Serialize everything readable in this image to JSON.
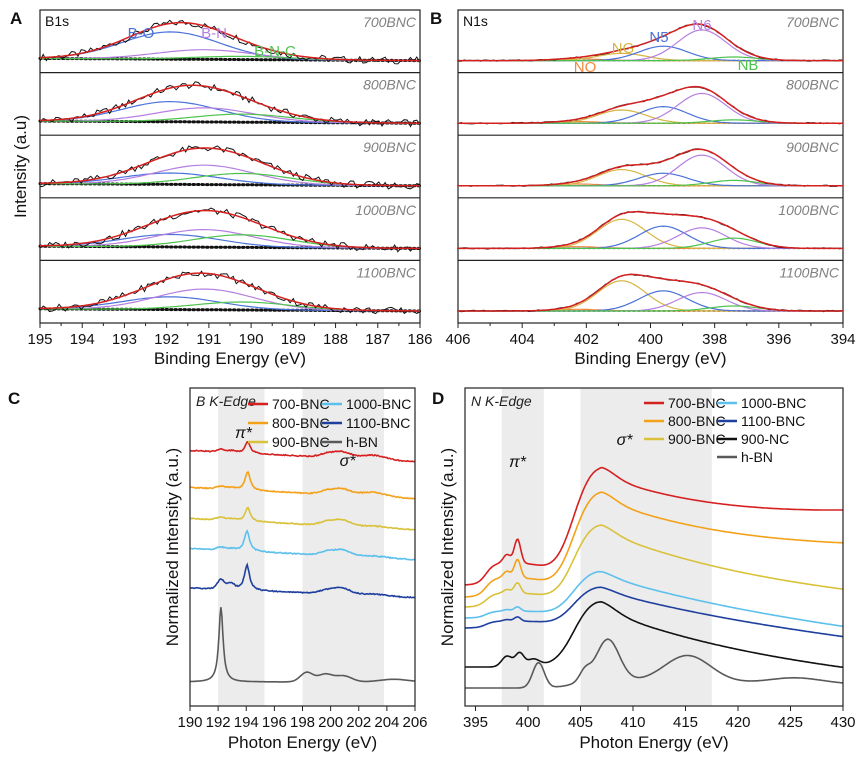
{
  "colors": {
    "frame": "#222222",
    "fit": "#d62020",
    "baseline": "#111111",
    "shade": "#ececec",
    "sample_label": "#808080",
    "series": {
      "700-BNC": "#d62020",
      "800-BNC": "#f4a11a",
      "900-BNC": "#d9c23a",
      "1000-BNC": "#5cc0ec",
      "1100-BNC": "#1f3f9e",
      "h-BN": "#595959",
      "900-NC": "#111111"
    },
    "components": {
      "B-O": "#4a72d8",
      "B-N": "#b57ee0",
      "B-N-C": "#4cc34c",
      "NO": "#f08a3c",
      "NG": "#d6b544",
      "N5": "#4a72d8",
      "N6": "#b57ee0",
      "NB": "#4cc34c"
    }
  },
  "chart_data": [
    {
      "panel": "A",
      "type": "line",
      "subtitle": "B1s",
      "xlabel": "Binding Energy (eV)",
      "ylabel": "Intensity (a.u)",
      "xlim": [
        195,
        186
      ],
      "xticks": [
        195,
        194,
        193,
        192,
        191,
        190,
        189,
        188,
        187,
        186
      ],
      "components": [
        {
          "name": "B-O",
          "center": 191.9
        },
        {
          "name": "B-N",
          "center": 191.1
        },
        {
          "name": "B-N-C",
          "center": 190.2
        }
      ],
      "samples": [
        {
          "name": "700BNC",
          "areas": {
            "B-O": 0.85,
            "B-N": 0.3,
            "B-N-C": 0.1
          }
        },
        {
          "name": "800BNC",
          "areas": {
            "B-O": 0.5,
            "B-N": 0.35,
            "B-N-C": 0.2
          }
        },
        {
          "name": "900BNC",
          "areas": {
            "B-O": 0.35,
            "B-N": 0.6,
            "B-N-C": 0.35
          }
        },
        {
          "name": "1000BNC",
          "areas": {
            "B-O": 0.25,
            "B-N": 0.35,
            "B-N-C": 0.25
          }
        },
        {
          "name": "1100BNC",
          "areas": {
            "B-O": 0.4,
            "B-N": 0.65,
            "B-N-C": 0.25
          }
        }
      ]
    },
    {
      "panel": "B",
      "type": "line",
      "subtitle": "N1s",
      "xlabel": "Binding Energy (eV)",
      "ylabel": "",
      "xlim": [
        406,
        394
      ],
      "xticks": [
        406,
        404,
        402,
        400,
        398,
        396,
        394
      ],
      "components": [
        {
          "name": "NO",
          "center": 402.3
        },
        {
          "name": "NG",
          "center": 400.9
        },
        {
          "name": "N5",
          "center": 399.6
        },
        {
          "name": "N6",
          "center": 398.4
        },
        {
          "name": "NB",
          "center": 397.4
        }
      ],
      "samples": [
        {
          "name": "700BNC",
          "areas": {
            "NO": 0.05,
            "NG": 0.2,
            "N5": 0.4,
            "N6": 0.85,
            "NB": 0.1
          }
        },
        {
          "name": "800BNC",
          "areas": {
            "NO": 0.05,
            "NG": 0.4,
            "N5": 0.5,
            "N6": 0.9,
            "NB": 0.1
          }
        },
        {
          "name": "900BNC",
          "areas": {
            "NO": 0.05,
            "NG": 0.45,
            "N5": 0.35,
            "N6": 0.85,
            "NB": 0.15
          }
        },
        {
          "name": "1000BNC",
          "areas": {
            "NO": 0.05,
            "NG": 0.85,
            "N5": 0.65,
            "N6": 0.6,
            "NB": 0.3
          }
        },
        {
          "name": "1100BNC",
          "areas": {
            "NO": 0.05,
            "NG": 0.9,
            "N5": 0.6,
            "N6": 0.55,
            "NB": 0.15
          }
        }
      ]
    },
    {
      "panel": "C",
      "type": "line",
      "subtitle": "B K-Edge",
      "xlabel": "Photon Energy (eV)",
      "ylabel": "Normalized Intensity (a.u.)",
      "xlim": [
        190,
        206
      ],
      "xticks": [
        190,
        192,
        194,
        196,
        198,
        200,
        202,
        204,
        206
      ],
      "shaded_regions": [
        [
          192,
          195.3
        ],
        [
          198,
          203.8
        ]
      ],
      "annotations": [
        {
          "text": "π*",
          "x": 194
        },
        {
          "text": "σ*",
          "x": 201
        }
      ],
      "legend_position": "top-right",
      "series": [
        {
          "name": "700-BNC",
          "offset": 5,
          "pi_peak": 194.1,
          "pi_height": 0.35
        },
        {
          "name": "800-BNC",
          "offset": 4,
          "pi_peak": 194.1,
          "pi_height": 0.55
        },
        {
          "name": "900-BNC",
          "offset": 3,
          "pi_peak": 194.1,
          "pi_height": 0.4
        },
        {
          "name": "1000-BNC",
          "offset": 2,
          "pi_peak": 194.05,
          "pi_height": 0.6
        },
        {
          "name": "1100-BNC",
          "offset": 1,
          "pi_peak": 194.05,
          "pi_height": 0.75
        },
        {
          "name": "h-BN",
          "offset": 0,
          "pi_peak": 192.2,
          "pi_height": 2.2
        }
      ]
    },
    {
      "panel": "D",
      "type": "line",
      "subtitle": "N K-Edge",
      "xlabel": "Photon Energy (eV)",
      "ylabel": "Normalized Intensity (a.u.)",
      "xlim": [
        394,
        430
      ],
      "xticks": [
        395,
        400,
        405,
        410,
        415,
        420,
        425,
        430
      ],
      "shaded_regions": [
        [
          397.5,
          401.5
        ],
        [
          405,
          417.5
        ]
      ],
      "annotations": [
        {
          "text": "π*",
          "x": 399
        },
        {
          "text": "σ*",
          "x": 409
        }
      ],
      "legend_position": "top-right",
      "series": [
        {
          "name": "700-BNC",
          "edge_height": 1.0
        },
        {
          "name": "800-BNC",
          "edge_height": 0.9
        },
        {
          "name": "900-BNC",
          "edge_height": 0.72
        },
        {
          "name": "1000-BNC",
          "edge_height": 0.42
        },
        {
          "name": "1100-BNC",
          "edge_height": 0.36
        },
        {
          "name": "900-NC",
          "edge_height": 0.62
        },
        {
          "name": "h-BN",
          "edge_height": 0.4
        }
      ]
    }
  ]
}
